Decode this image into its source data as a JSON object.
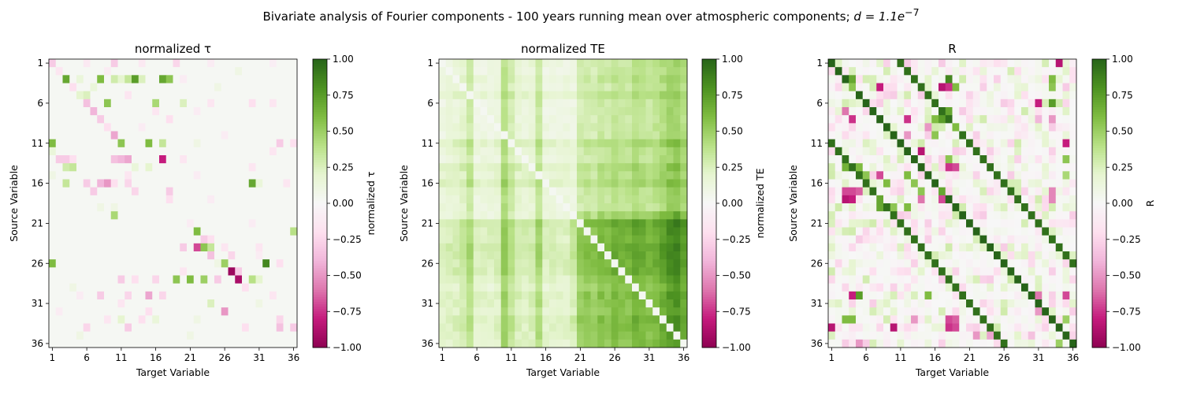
{
  "figure": {
    "suptitle_text": "Bivariate analysis of Fourier components - 100 years running mean over atmospheric components; ",
    "suptitle_math": "d = 1.1e",
    "suptitle_exp": "−7"
  },
  "chart_data": [
    {
      "type": "heatmap",
      "title": "normalized τ",
      "xlabel": "Target Variable",
      "ylabel": "Source Variable",
      "colorbar_label": "normalized τ",
      "n": 36,
      "x_ticks": [
        1,
        6,
        11,
        16,
        21,
        26,
        31,
        36
      ],
      "y_ticks": [
        1,
        6,
        11,
        16,
        21,
        26,
        31,
        36
      ],
      "vlim": [
        -1,
        1
      ],
      "colorbar_ticks": [
        "1.00",
        "0.75",
        "0.50",
        "0.25",
        "0.00",
        "−0.25",
        "−0.50",
        "−0.75",
        "−1.00"
      ],
      "colormap": "PiYG",
      "background_value": 0.02,
      "cells": [
        [
          1,
          1,
          -0.3
        ],
        [
          1,
          10,
          -0.3
        ],
        [
          1,
          19,
          -0.25
        ],
        [
          1,
          6,
          -0.12
        ],
        [
          1,
          14,
          -0.12
        ],
        [
          1,
          24,
          -0.1
        ],
        [
          1,
          33,
          -0.08
        ],
        [
          2,
          2,
          -0.15
        ],
        [
          2,
          9,
          -0.1
        ],
        [
          2,
          28,
          0.1
        ],
        [
          3,
          3,
          0.7
        ],
        [
          3,
          5,
          0.15
        ],
        [
          3,
          8,
          0.6
        ],
        [
          3,
          10,
          0.3
        ],
        [
          3,
          11,
          0.2
        ],
        [
          3,
          12,
          0.35
        ],
        [
          3,
          13,
          0.75
        ],
        [
          3,
          14,
          0.25
        ],
        [
          3,
          17,
          0.7
        ],
        [
          3,
          18,
          0.55
        ],
        [
          3,
          20,
          -0.1
        ],
        [
          4,
          4,
          -0.2
        ],
        [
          4,
          7,
          0.15
        ],
        [
          4,
          25,
          0.1
        ],
        [
          5,
          5,
          0.2
        ],
        [
          5,
          6,
          0.25
        ],
        [
          5,
          12,
          -0.15
        ],
        [
          6,
          6,
          -0.35
        ],
        [
          6,
          9,
          0.55
        ],
        [
          6,
          16,
          0.45
        ],
        [
          6,
          20,
          0.25
        ],
        [
          6,
          24,
          -0.15
        ],
        [
          6,
          30,
          -0.2
        ],
        [
          6,
          33,
          -0.15
        ],
        [
          7,
          7,
          -0.4
        ],
        [
          7,
          16,
          -0.15
        ],
        [
          7,
          22,
          -0.1
        ],
        [
          8,
          8,
          -0.3
        ],
        [
          8,
          18,
          -0.2
        ],
        [
          9,
          9,
          -0.2
        ],
        [
          9,
          14,
          -0.1
        ],
        [
          10,
          10,
          -0.45
        ],
        [
          10,
          26,
          -0.1
        ],
        [
          11,
          1,
          0.6
        ],
        [
          11,
          11,
          0.55
        ],
        [
          11,
          15,
          0.6
        ],
        [
          11,
          17,
          0.35
        ],
        [
          11,
          22,
          0.1
        ],
        [
          11,
          34,
          -0.3
        ],
        [
          11,
          36,
          -0.2
        ],
        [
          12,
          1,
          0.15
        ],
        [
          12,
          33,
          -0.15
        ],
        [
          13,
          2,
          -0.3
        ],
        [
          13,
          3,
          -0.3
        ],
        [
          13,
          4,
          -0.2
        ],
        [
          13,
          10,
          -0.35
        ],
        [
          13,
          11,
          -0.4
        ],
        [
          13,
          12,
          -0.45
        ],
        [
          13,
          17,
          -0.8
        ],
        [
          13,
          20,
          -0.15
        ],
        [
          14,
          3,
          0.3
        ],
        [
          14,
          4,
          0.35
        ],
        [
          14,
          13,
          0.15
        ],
        [
          14,
          15,
          0.2
        ],
        [
          14,
          30,
          -0.15
        ],
        [
          15,
          1,
          0.1
        ],
        [
          15,
          12,
          -0.15
        ],
        [
          15,
          22,
          -0.1
        ],
        [
          16,
          3,
          0.35
        ],
        [
          16,
          6,
          -0.3
        ],
        [
          16,
          8,
          -0.4
        ],
        [
          16,
          9,
          -0.5
        ],
        [
          16,
          10,
          -0.2
        ],
        [
          16,
          12,
          -0.25
        ],
        [
          16,
          30,
          0.7
        ],
        [
          16,
          31,
          0.15
        ],
        [
          16,
          35,
          -0.15
        ],
        [
          17,
          7,
          -0.3
        ],
        [
          17,
          13,
          -0.25
        ],
        [
          17,
          18,
          -0.3
        ],
        [
          18,
          18,
          -0.2
        ],
        [
          18,
          24,
          -0.1
        ],
        [
          19,
          8,
          0.1
        ],
        [
          19,
          10,
          0.1
        ],
        [
          20,
          10,
          0.45
        ],
        [
          21,
          21,
          -0.1
        ],
        [
          21,
          30,
          -0.1
        ],
        [
          22,
          22,
          0.6
        ],
        [
          22,
          36,
          0.4
        ],
        [
          23,
          23,
          -0.3
        ],
        [
          23,
          24,
          -0.2
        ],
        [
          24,
          20,
          -0.3
        ],
        [
          24,
          22,
          -0.7
        ],
        [
          24,
          23,
          0.55
        ],
        [
          24,
          24,
          0.35
        ],
        [
          24,
          26,
          -0.15
        ],
        [
          24,
          31,
          -0.15
        ],
        [
          25,
          24,
          -0.35
        ],
        [
          25,
          27,
          -0.25
        ],
        [
          25,
          31,
          -0.1
        ],
        [
          26,
          1,
          0.6
        ],
        [
          26,
          25,
          0.1
        ],
        [
          26,
          26,
          0.5
        ],
        [
          26,
          32,
          0.85
        ],
        [
          26,
          34,
          -0.2
        ],
        [
          27,
          27,
          -0.95
        ],
        [
          27,
          20,
          -0.15
        ],
        [
          27,
          28,
          -0.3
        ],
        [
          28,
          11,
          -0.3
        ],
        [
          28,
          13,
          -0.2
        ],
        [
          28,
          16,
          -0.25
        ],
        [
          28,
          19,
          0.55
        ],
        [
          28,
          21,
          0.6
        ],
        [
          28,
          23,
          0.5
        ],
        [
          28,
          25,
          -0.3
        ],
        [
          28,
          28,
          -0.9
        ],
        [
          28,
          30,
          0.4
        ],
        [
          28,
          31,
          0.2
        ],
        [
          29,
          4,
          0.1
        ],
        [
          29,
          29,
          -0.2
        ],
        [
          30,
          5,
          -0.1
        ],
        [
          30,
          8,
          -0.3
        ],
        [
          30,
          12,
          -0.25
        ],
        [
          30,
          15,
          -0.45
        ],
        [
          30,
          17,
          -0.25
        ],
        [
          30,
          33,
          -0.15
        ],
        [
          31,
          11,
          -0.15
        ],
        [
          31,
          24,
          0.25
        ],
        [
          31,
          31,
          0.1
        ],
        [
          32,
          2,
          -0.1
        ],
        [
          32,
          15,
          -0.2
        ],
        [
          32,
          26,
          -0.5
        ],
        [
          33,
          9,
          -0.15
        ],
        [
          33,
          11,
          0.2
        ],
        [
          33,
          14,
          -0.2
        ],
        [
          33,
          16,
          0.15
        ],
        [
          33,
          22,
          0.1
        ],
        [
          33,
          34,
          -0.25
        ],
        [
          34,
          6,
          -0.25
        ],
        [
          34,
          12,
          -0.3
        ],
        [
          34,
          29,
          -0.2
        ],
        [
          34,
          34,
          -0.35
        ],
        [
          34,
          36,
          -0.3
        ],
        [
          35,
          5,
          0.1
        ],
        [
          35,
          21,
          0.1
        ]
      ]
    },
    {
      "type": "heatmap",
      "title": "normalized TE",
      "xlabel": "Target Variable",
      "ylabel": "Source Variable",
      "colorbar_label": "normalized TE",
      "n": 36,
      "x_ticks": [
        1,
        6,
        11,
        16,
        21,
        26,
        31,
        36
      ],
      "y_ticks": [
        1,
        6,
        11,
        16,
        21,
        26,
        31,
        36
      ],
      "vlim": [
        -1,
        1
      ],
      "colorbar_ticks": [
        "1.00",
        "0.75",
        "0.50",
        "0.25",
        "0.00",
        "−0.25",
        "−0.50",
        "−0.75",
        "−1.00"
      ],
      "colormap": "PiYG",
      "column_weights": [
        0.05,
        0.1,
        0.12,
        0.2,
        0.4,
        0.05,
        0.05,
        0.05,
        0.1,
        0.55,
        0.35,
        0.15,
        0.1,
        0.15,
        0.45,
        0.05,
        0.05,
        0.05,
        0.05,
        0.05,
        0.35,
        0.4,
        0.35,
        0.45,
        0.4,
        0.5,
        0.45,
        0.45,
        0.55,
        0.5,
        0.45,
        0.5,
        0.6,
        0.7,
        0.75,
        0.6
      ],
      "row_weights": [
        0.35,
        0.3,
        0.45,
        0.3,
        0.6,
        0.3,
        0.3,
        0.3,
        0.35,
        0.3,
        0.7,
        0.45,
        0.35,
        0.7,
        0.55,
        0.8,
        0.45,
        0.4,
        0.4,
        0.4,
        1.0,
        0.9,
        0.85,
        1.0,
        0.95,
        0.9,
        0.9,
        0.7,
        0.55,
        0.75,
        0.7,
        0.6,
        0.8,
        0.75,
        0.7,
        0.65
      ],
      "block_boost": {
        "rows": [
          20,
          36
        ],
        "cols": [
          20,
          36
        ],
        "factor": 1.35
      },
      "diagonal_value": 0.0
    },
    {
      "type": "heatmap",
      "title": "R",
      "xlabel": "Target Variable",
      "ylabel": "Source Variable",
      "colorbar_label": "R",
      "n": 36,
      "x_ticks": [
        1,
        6,
        11,
        16,
        21,
        26,
        31,
        36
      ],
      "y_ticks": [
        1,
        6,
        11,
        16,
        21,
        26,
        31,
        36
      ],
      "vlim": [
        -1,
        1
      ],
      "colorbar_ticks": [
        "1.00",
        "0.75",
        "0.50",
        "0.25",
        "0.00",
        "−0.25",
        "−0.50",
        "−0.75",
        "−1.00"
      ],
      "colormap": "PiYG",
      "diagonal_value": 1.0,
      "secondary_diagonal_value": 0.95,
      "secondary_diagonal_offset": 10,
      "noise_amplitude": 0.3,
      "strong_cells": [
        [
          1,
          34,
          -0.85
        ],
        [
          3,
          4,
          0.7
        ],
        [
          3,
          18,
          0.85
        ],
        [
          3,
          33,
          0.6
        ],
        [
          4,
          4,
          0.55
        ],
        [
          4,
          8,
          -0.8
        ],
        [
          4,
          17,
          -0.85
        ],
        [
          4,
          18,
          -0.75
        ],
        [
          4,
          19,
          0.6
        ],
        [
          4,
          33,
          0.55
        ],
        [
          4,
          35,
          -0.3
        ],
        [
          6,
          31,
          -0.8
        ],
        [
          6,
          33,
          0.75
        ],
        [
          7,
          3,
          -0.6
        ],
        [
          7,
          18,
          0.7
        ],
        [
          8,
          4,
          -0.75
        ],
        [
          8,
          12,
          -0.75
        ],
        [
          8,
          16,
          0.6
        ],
        [
          8,
          17,
          0.75
        ],
        [
          8,
          31,
          -0.4
        ],
        [
          8,
          33,
          -0.5
        ],
        [
          9,
          15,
          -0.5
        ],
        [
          9,
          19,
          0.6
        ],
        [
          10,
          12,
          -0.5
        ],
        [
          10,
          16,
          0.55
        ],
        [
          11,
          35,
          -0.8
        ],
        [
          12,
          14,
          -0.85
        ],
        [
          13,
          18,
          0.55
        ],
        [
          13,
          35,
          0.55
        ],
        [
          14,
          3,
          0.65
        ],
        [
          14,
          5,
          0.6
        ],
        [
          14,
          18,
          -0.75
        ],
        [
          14,
          19,
          -0.7
        ],
        [
          15,
          8,
          -0.7
        ],
        [
          15,
          6,
          0.55
        ],
        [
          15,
          12,
          0.6
        ],
        [
          15,
          35,
          0.45
        ],
        [
          16,
          9,
          0.6
        ],
        [
          16,
          13,
          0.55
        ],
        [
          17,
          3,
          -0.7
        ],
        [
          17,
          4,
          -0.7
        ],
        [
          17,
          5,
          -0.65
        ],
        [
          17,
          14,
          0.55
        ],
        [
          17,
          17,
          0.7
        ],
        [
          17,
          33,
          -0.55
        ],
        [
          18,
          3,
          -0.85
        ],
        [
          18,
          4,
          -0.8
        ],
        [
          18,
          8,
          0.7
        ],
        [
          18,
          14,
          -0.6
        ],
        [
          18,
          17,
          -0.7
        ],
        [
          18,
          33,
          -0.55
        ],
        [
          19,
          8,
          0.7
        ],
        [
          19,
          10,
          0.55
        ],
        [
          19,
          12,
          0.6
        ],
        [
          30,
          4,
          -0.8
        ],
        [
          30,
          5,
          0.75
        ],
        [
          30,
          15,
          0.6
        ],
        [
          30,
          31,
          -0.6
        ],
        [
          30,
          35,
          -0.7
        ],
        [
          32,
          31,
          -0.5
        ],
        [
          33,
          3,
          0.6
        ],
        [
          33,
          4,
          0.6
        ],
        [
          33,
          13,
          -0.5
        ],
        [
          33,
          18,
          -0.7
        ],
        [
          33,
          19,
          -0.65
        ],
        [
          33,
          35,
          0.5
        ],
        [
          34,
          1,
          -0.85
        ],
        [
          34,
          10,
          -0.85
        ],
        [
          34,
          18,
          -0.75
        ],
        [
          34,
          19,
          -0.7
        ],
        [
          36,
          5,
          -0.5
        ],
        [
          36,
          34,
          0.5
        ],
        [
          35,
          22,
          -0.5
        ],
        [
          35,
          24,
          -0.45
        ],
        [
          35,
          30,
          -0.35
        ]
      ]
    }
  ]
}
